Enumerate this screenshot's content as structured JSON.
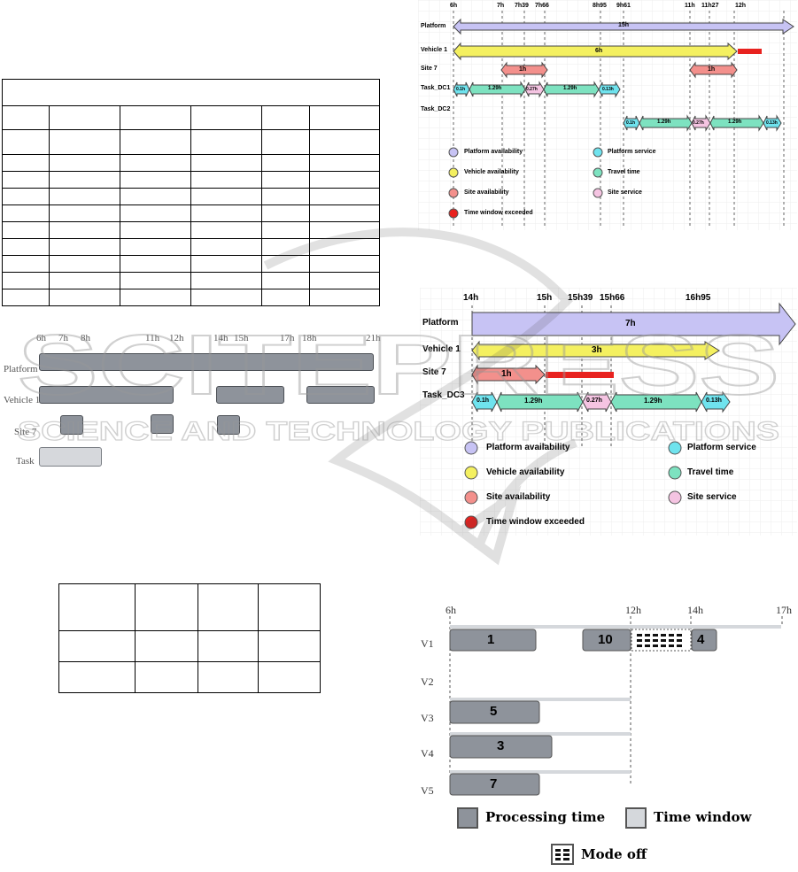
{
  "colors": {
    "platform": "#c7c3f4",
    "vehicle": "#f4f060",
    "site": "#f3908c",
    "travel": "#7de2c0",
    "platform_service": "#6fe3ee",
    "site_service": "#f5c4e2",
    "exceeded": "#e8221f",
    "processing": "#8e939b",
    "time_window": "#d5d8dc"
  },
  "table1": {
    "rows": 12,
    "cols": 6
  },
  "table2": {
    "rows": 3,
    "cols": 4
  },
  "gray_gantt": {
    "ticks": [
      "6h",
      "7h",
      "8h",
      "11h",
      "12h",
      "14h",
      "15h",
      "17h",
      "18h",
      "21h"
    ],
    "rows": [
      "Platform",
      "Vehicle 1",
      "Site 7",
      "Task"
    ]
  },
  "fig_top": {
    "ticks": [
      "6h",
      "7h",
      "7h39",
      "7h66",
      "8h95",
      "9h61",
      "11h",
      "11h27",
      "12h"
    ],
    "rows": [
      "Platform",
      "Vehicle 1",
      "Site 7",
      "Task_DC1",
      "Task_DC2"
    ],
    "platform_label": "15h",
    "vehicle_label": "6h",
    "site_labels": [
      "1h",
      "1h"
    ],
    "dc1_labels": [
      "0.1h",
      "1.29h",
      "0.27h",
      "1.29h",
      "0.13h"
    ],
    "dc2_labels": [
      "0.1h",
      "1.29h",
      "0.27h",
      "1.29h",
      "0.13h"
    ],
    "legend": {
      "platform_availability": "Platform availability",
      "platform_service": "Platform service",
      "vehicle_availability": "Vehicle availability",
      "travel_time": "Travel time",
      "site_availability": "Site availability",
      "site_service": "Site service",
      "time_window_exceeded": "Time window exceeded"
    }
  },
  "fig_mid": {
    "ticks": [
      "14h",
      "15h",
      "15h39",
      "15h66",
      "16h95"
    ],
    "rows": [
      "Platform",
      "Vehicle 1",
      "Site 7",
      "Task_DC3"
    ],
    "platform_label": "7h",
    "vehicle_label": "3h",
    "site_label": "1h",
    "dc3_labels": [
      "0.1h",
      "1.29h",
      "0.27h",
      "1.29h",
      "0.13h"
    ],
    "legend": {
      "platform_availability": "Platform availability",
      "platform_service": "Platform service",
      "vehicle_availability": "Vehicle availability",
      "travel_time": "Travel time",
      "site_availability": "Site availability",
      "site_service": "Site service",
      "time_window_exceeded": "Time window exceeded"
    }
  },
  "fig_bottom": {
    "ticks": [
      "6h",
      "12h",
      "14h",
      "17h"
    ],
    "rows": [
      "V1",
      "V2",
      "V3",
      "V4",
      "V5"
    ],
    "jobs": [
      "1",
      "10",
      "4",
      "5",
      "3",
      "7"
    ],
    "legend": {
      "processing": "Processing time",
      "time_window": "Time window",
      "mode_off": "Mode off"
    }
  },
  "watermark": {
    "line1": "SCITEPRESS",
    "line2": "SCIENCE AND TECHNOLOGY PUBLICATIONS"
  }
}
